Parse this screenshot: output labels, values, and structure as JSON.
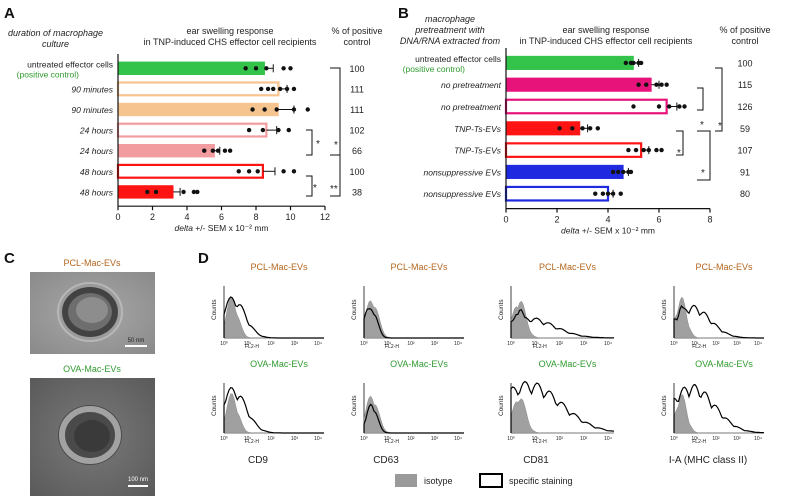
{
  "panel_a": {
    "letter": "A",
    "header_left": [
      "duration of macrophage",
      "culture"
    ],
    "header_mid": [
      "ear swelling response",
      "in TNP-induced CHS effector cell recipients"
    ],
    "header_right": [
      "% of positive",
      "control"
    ]
  },
  "panel_b": {
    "letter": "B",
    "header_left": [
      "macrophage",
      "pretreatment with",
      "DNA/RNA extracted from"
    ],
    "header_mid": [
      "ear swelling response",
      "in TNP-induced CHS effector cell recipients"
    ],
    "header_right": [
      "% of positive",
      "control"
    ]
  },
  "panel_c": {
    "letter": "C",
    "top_label": "PCL-Mac-EVs",
    "bottom_label": "OVA-Mac-EVs",
    "scale_top": "50 nm",
    "scale_bottom": "100 nm"
  },
  "panel_d": {
    "letter": "D",
    "top_row_label": "PCL-Mac-EVs",
    "bottom_row_label": "OVA-Mac-EVs",
    "y_label": "Counts",
    "x_label": "FL2-H",
    "tick_labels": [
      "10⁰",
      "10¹",
      "10²",
      "10³",
      "10⁴"
    ],
    "markers": [
      "CD9",
      "CD63",
      "CD81",
      "I-A (MHC class II)"
    ],
    "legend": {
      "isotype": "isotype",
      "specific": "specific staining"
    }
  },
  "colors": {
    "green": "#33c24a",
    "orange": "#f6c48f",
    "pink": "#f29ca0",
    "red": "#ff1414",
    "magenta": "#e8137a",
    "blue": "#1f2ae0",
    "label_green": "#2f9a2f",
    "label_brown": "#b5651d"
  },
  "chart_data": [
    {
      "type": "bar",
      "title": "ear swelling response in TNP-induced CHS effector cell recipients",
      "xlabel": "delta +/- SEM x 10⁻² mm",
      "xlim": [
        0,
        12
      ],
      "xticks": [
        "0",
        "2",
        "4",
        "6",
        "8",
        "10",
        "12"
      ],
      "orientation": "horizontal",
      "categories": [
        {
          "label": "untreated effector cells",
          "sublabel": "(positive control)",
          "value": 8.5,
          "err": 0.5,
          "color": "#33c24a",
          "style": "filled",
          "percent": "100",
          "points": [
            7.4,
            8.0,
            8.6,
            9.6,
            10.0
          ]
        },
        {
          "label": "90 minutes",
          "value": 9.3,
          "err": 0.5,
          "color": "#f6c48f",
          "style": "open",
          "percent": "111",
          "points": [
            8.3,
            8.7,
            9.0,
            9.4,
            9.8,
            10.2
          ]
        },
        {
          "label": "90 minutes",
          "value": 9.3,
          "err": 0.9,
          "color": "#f6c48f",
          "style": "filled",
          "percent": "111",
          "points": [
            7.8,
            8.5,
            9.2,
            10.2,
            11.0
          ]
        },
        {
          "label": "24 hours",
          "value": 8.6,
          "err": 0.6,
          "color": "#f29ca0",
          "style": "open",
          "percent": "102",
          "points": [
            7.6,
            8.4,
            9.3,
            9.9
          ]
        },
        {
          "label": "24 hours",
          "value": 5.6,
          "err": 0.3,
          "color": "#f29ca0",
          "style": "filled",
          "percent": "66",
          "points": [
            5.0,
            5.5,
            5.8,
            6.2,
            6.5
          ]
        },
        {
          "label": "48 hours",
          "value": 8.4,
          "err": 0.7,
          "color": "#ff1414",
          "style": "open",
          "percent": "100",
          "points": [
            7.0,
            7.6,
            8.1,
            9.6,
            10.2
          ]
        },
        {
          "label": "48 hours",
          "value": 3.2,
          "err": 0.4,
          "color": "#ff1414",
          "style": "filled",
          "percent": "38",
          "points": [
            1.7,
            2.2,
            3.8,
            4.4,
            4.6
          ]
        }
      ],
      "significance": [
        "*",
        "*",
        "*",
        "**"
      ]
    },
    {
      "type": "bar",
      "title": "ear swelling response in TNP-induced CHS effector cell recipients",
      "xlabel": "delta +/- SEM x 10⁻² mm",
      "xlim": [
        0,
        8
      ],
      "xticks": [
        "0",
        "2",
        "4",
        "6",
        "8"
      ],
      "orientation": "horizontal",
      "categories": [
        {
          "label": "untreated effector cells",
          "sublabel": "(positive control)",
          "value": 5.0,
          "err": 0.2,
          "color": "#33c24a",
          "style": "filled",
          "percent": "100",
          "points": [
            4.7,
            4.9,
            5.0,
            5.2,
            5.3
          ]
        },
        {
          "label": "no pretreatment",
          "value": 5.7,
          "err": 0.3,
          "color": "#e8137a",
          "style": "filled",
          "percent": "115",
          "points": [
            5.2,
            5.5,
            5.9,
            6.1,
            6.3
          ]
        },
        {
          "label": "no pretreatment",
          "value": 6.3,
          "err": 0.4,
          "color": "#e8137a",
          "style": "open",
          "percent": "126",
          "points": [
            5.0,
            6.0,
            6.4,
            6.8,
            7.0
          ]
        },
        {
          "label": "TNP-Ts-EVs",
          "value": 2.9,
          "err": 0.3,
          "color": "#ff1414",
          "style": "filled",
          "percent": "59",
          "points": [
            2.1,
            2.6,
            3.0,
            3.3,
            3.6
          ]
        },
        {
          "label": "TNP-Ts-EVs",
          "value": 5.3,
          "err": 0.3,
          "color": "#ff1414",
          "style": "open",
          "percent": "107",
          "points": [
            4.8,
            5.1,
            5.4,
            5.6,
            5.9,
            6.1
          ]
        },
        {
          "label": "nonsuppressive EVs",
          "value": 4.6,
          "err": 0.2,
          "color": "#1f2ae0",
          "style": "filled",
          "percent": "91",
          "points": [
            4.2,
            4.4,
            4.6,
            4.8,
            4.9
          ]
        },
        {
          "label": "nonsuppressive EVs",
          "value": 4.0,
          "err": 0.2,
          "color": "#1f2ae0",
          "style": "open",
          "percent": "80",
          "points": [
            3.5,
            3.8,
            4.0,
            4.2,
            4.5
          ]
        }
      ],
      "significance": [
        "*",
        "*",
        "*",
        "*"
      ]
    }
  ]
}
